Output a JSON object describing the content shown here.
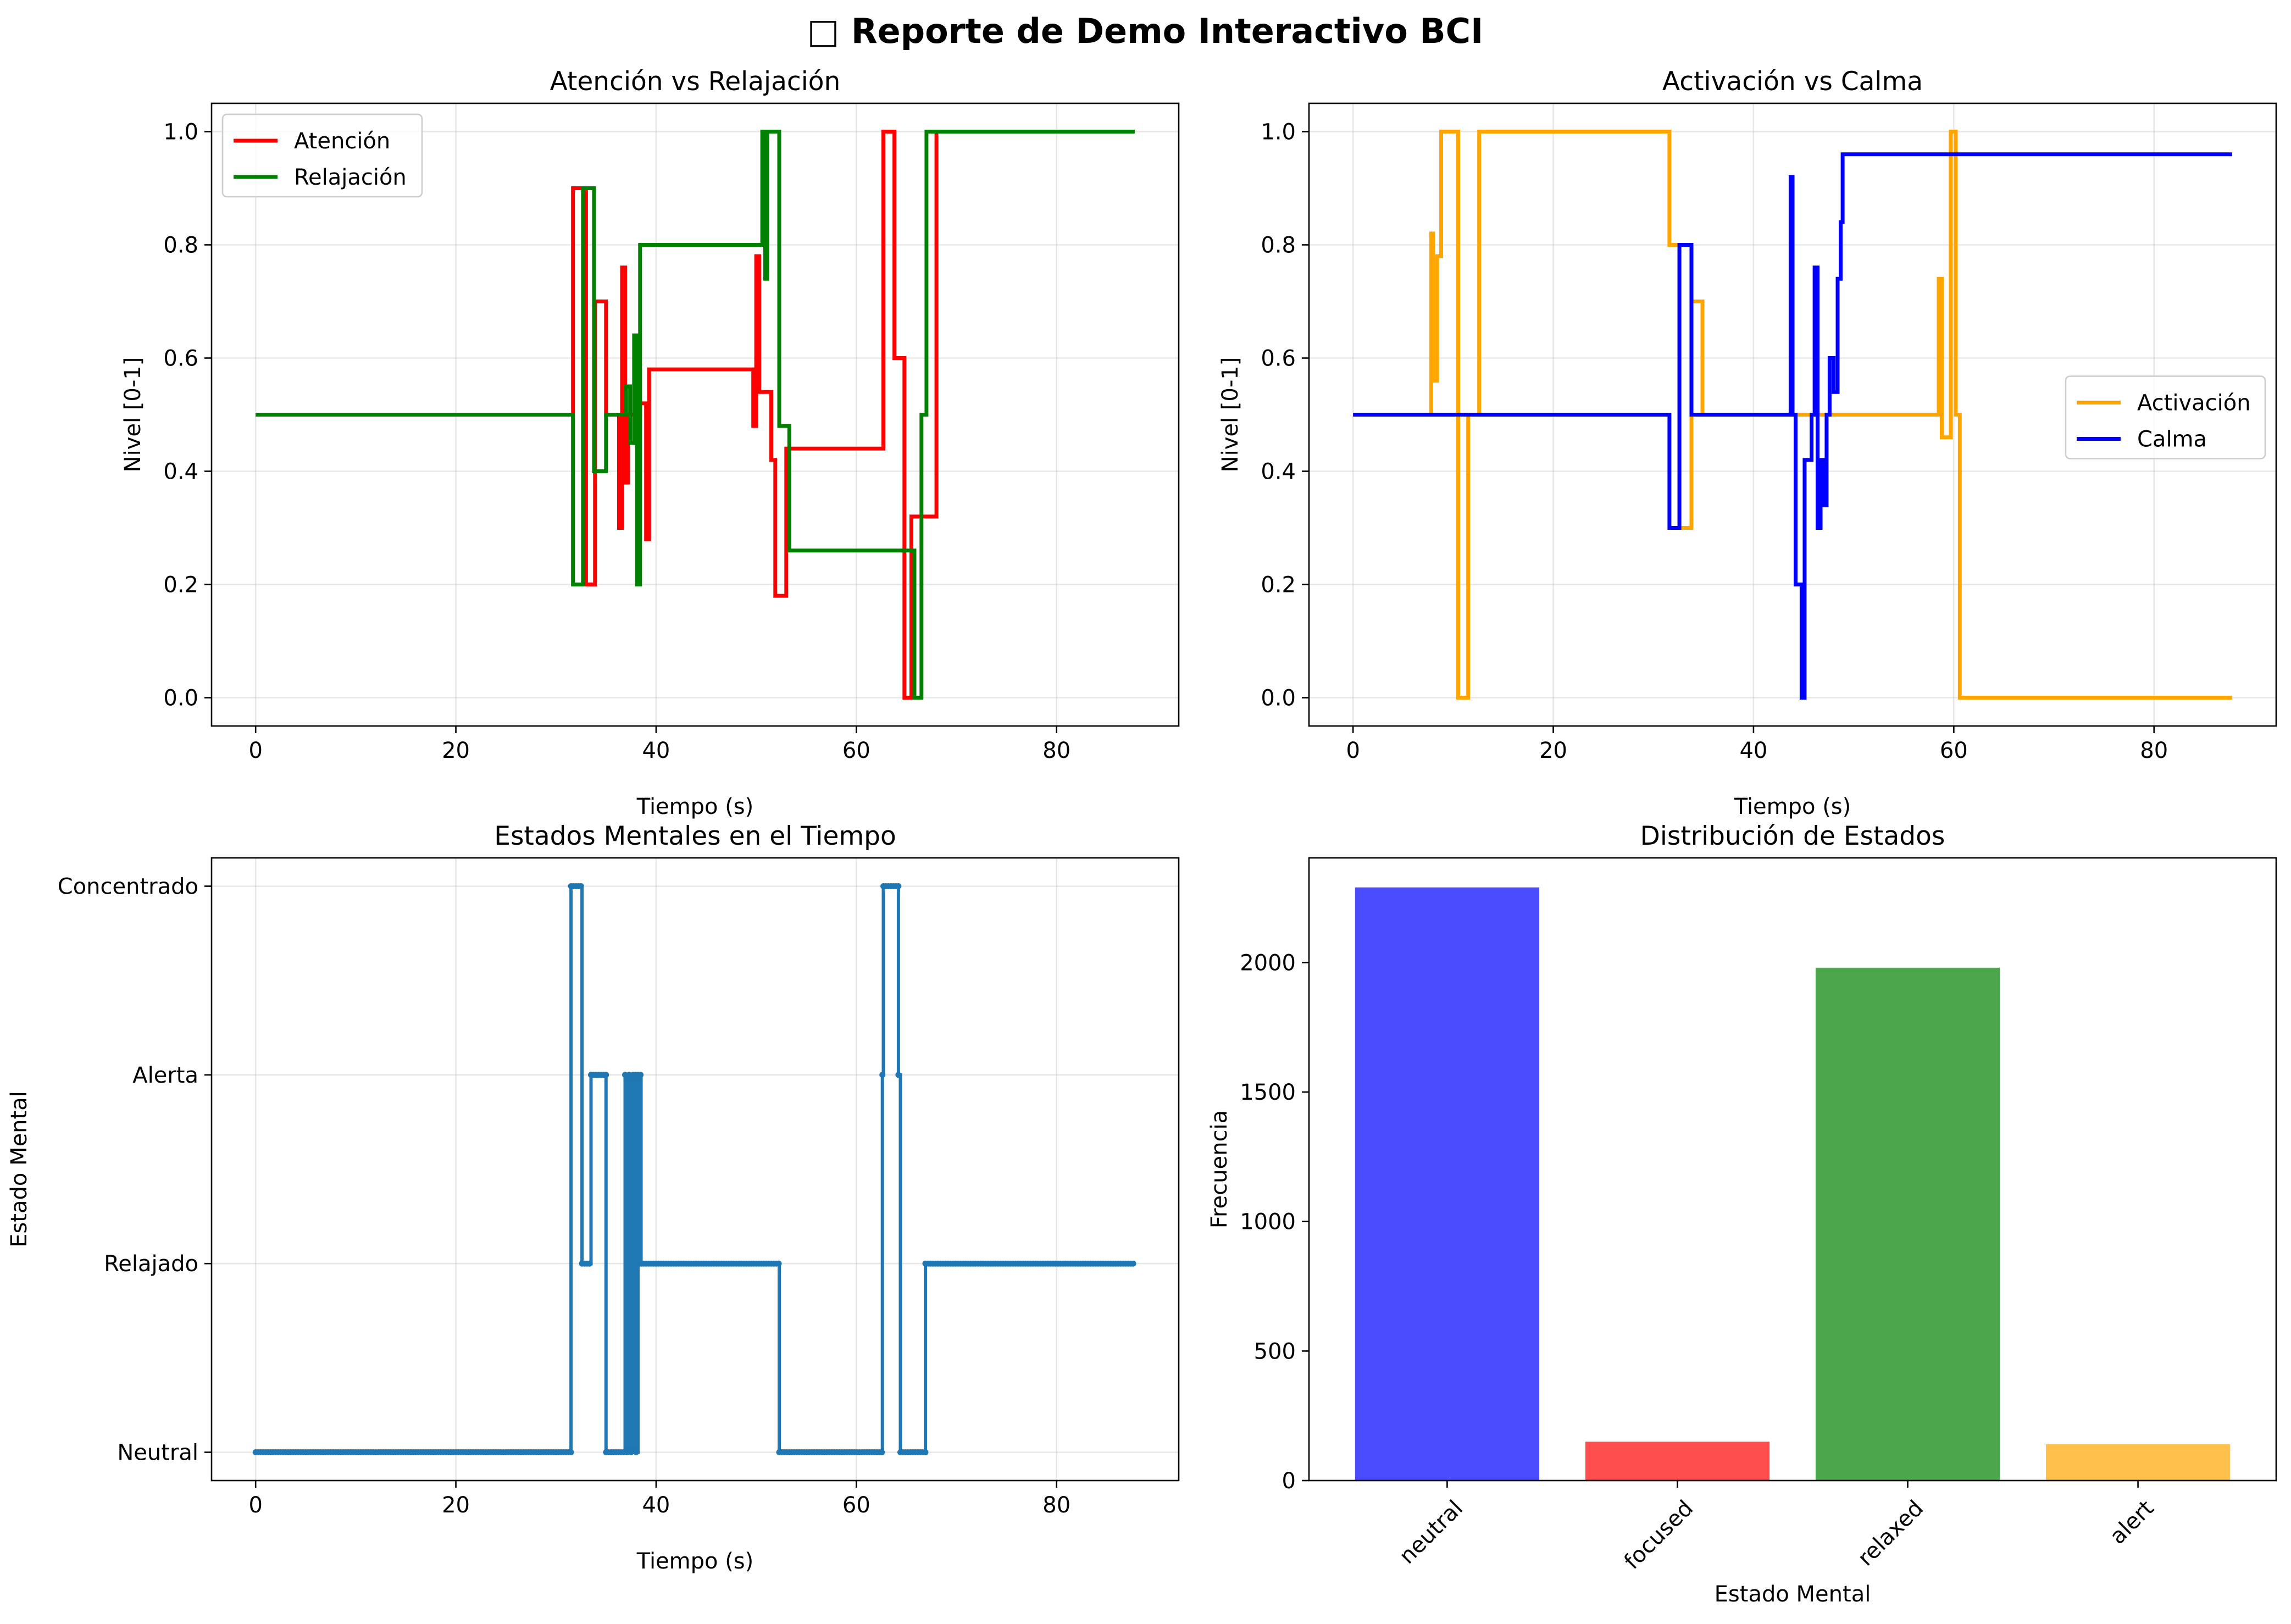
{
  "figure": {
    "suptitle": "□ Reporte de Demo Interactivo BCI"
  },
  "colors": {
    "atencion": "#ff0000",
    "relajacion": "#008000",
    "activacion": "#ffa500",
    "calma": "#0000ff",
    "estados": "#1f77b4"
  },
  "chart_data": [
    {
      "type": "line",
      "title": "Atención vs Relajación",
      "xlabel": "Tiempo (s)",
      "ylabel": "Nivel [0-1]",
      "xlim": [
        -4.4,
        92.2
      ],
      "ylim": [
        -0.05,
        1.05
      ],
      "xticks": [
        0,
        20,
        40,
        60,
        80
      ],
      "yticks": [
        0.0,
        0.2,
        0.4,
        0.6,
        0.8,
        1.0
      ],
      "grid": true,
      "legend": "upper left",
      "series": [
        {
          "name": "Atención",
          "color": "#ff0000",
          "points": [
            [
              0,
              0.5
            ],
            [
              31.7,
              0.5
            ],
            [
              31.7,
              0.9
            ],
            [
              33,
              0.9
            ],
            [
              33,
              0.2
            ],
            [
              33.9,
              0.2
            ],
            [
              33.9,
              0.7
            ],
            [
              35,
              0.7
            ],
            [
              35,
              0.5
            ],
            [
              36.3,
              0.5
            ],
            [
              36.3,
              0.3
            ],
            [
              36.6,
              0.3
            ],
            [
              36.6,
              0.76
            ],
            [
              36.9,
              0.76
            ],
            [
              36.9,
              0.38
            ],
            [
              37.2,
              0.38
            ],
            [
              37.2,
              0.5
            ],
            [
              38.4,
              0.5
            ],
            [
              38.4,
              0.52
            ],
            [
              39,
              0.52
            ],
            [
              39,
              0.28
            ],
            [
              39.3,
              0.28
            ],
            [
              39.3,
              0.58
            ],
            [
              49.7,
              0.58
            ],
            [
              49.7,
              0.48
            ],
            [
              50,
              0.48
            ],
            [
              50,
              0.78
            ],
            [
              50.3,
              0.78
            ],
            [
              50.3,
              0.54
            ],
            [
              51.5,
              0.54
            ],
            [
              51.5,
              0.42
            ],
            [
              51.9,
              0.42
            ],
            [
              51.9,
              0.18
            ],
            [
              53,
              0.18
            ],
            [
              53,
              0.44
            ],
            [
              62.7,
              0.44
            ],
            [
              62.7,
              1.0
            ],
            [
              63.8,
              1.0
            ],
            [
              63.8,
              0.6
            ],
            [
              64.8,
              0.6
            ],
            [
              64.8,
              0.0
            ],
            [
              65.5,
              0.0
            ],
            [
              65.5,
              0.32
            ],
            [
              68,
              0.32
            ],
            [
              68,
              1.0
            ],
            [
              87.8,
              1.0
            ]
          ]
        },
        {
          "name": "Relajación",
          "color": "#008000",
          "points": [
            [
              0,
              0.5
            ],
            [
              31.7,
              0.5
            ],
            [
              31.7,
              0.2
            ],
            [
              32.7,
              0.2
            ],
            [
              32.7,
              0.9
            ],
            [
              33.8,
              0.9
            ],
            [
              33.8,
              0.4
            ],
            [
              35,
              0.4
            ],
            [
              35,
              0.5
            ],
            [
              37,
              0.5
            ],
            [
              37,
              0.55
            ],
            [
              37.4,
              0.55
            ],
            [
              37.4,
              0.45
            ],
            [
              37.8,
              0.45
            ],
            [
              37.8,
              0.64
            ],
            [
              38.1,
              0.64
            ],
            [
              38.1,
              0.2
            ],
            [
              38.4,
              0.2
            ],
            [
              38.4,
              0.8
            ],
            [
              50.6,
              0.8
            ],
            [
              50.6,
              1.0
            ],
            [
              50.9,
              1.0
            ],
            [
              50.9,
              0.74
            ],
            [
              51.1,
              0.74
            ],
            [
              51.1,
              1.0
            ],
            [
              52.3,
              1.0
            ],
            [
              52.3,
              0.48
            ],
            [
              53.3,
              0.48
            ],
            [
              53.3,
              0.26
            ],
            [
              65.8,
              0.26
            ],
            [
              65.8,
              0.0
            ],
            [
              66.5,
              0.0
            ],
            [
              66.5,
              0.5
            ],
            [
              67,
              0.5
            ],
            [
              67,
              1.0
            ],
            [
              87.8,
              1.0
            ]
          ]
        }
      ]
    },
    {
      "type": "line",
      "title": "Activación vs Calma",
      "xlabel": "Tiempo (s)",
      "ylabel": "Nivel [0-1]",
      "xlim": [
        -4.4,
        92.2
      ],
      "ylim": [
        -0.05,
        1.05
      ],
      "xticks": [
        0,
        20,
        40,
        60,
        80
      ],
      "yticks": [
        0.0,
        0.2,
        0.4,
        0.6,
        0.8,
        1.0
      ],
      "grid": true,
      "legend": "center right",
      "series": [
        {
          "name": "Activación",
          "color": "#ffa500",
          "points": [
            [
              0,
              0.5
            ],
            [
              7.8,
              0.5
            ],
            [
              7.8,
              0.82
            ],
            [
              8,
              0.82
            ],
            [
              8,
              0.56
            ],
            [
              8.4,
              0.56
            ],
            [
              8.4,
              0.78
            ],
            [
              8.8,
              0.78
            ],
            [
              8.8,
              1.0
            ],
            [
              10.5,
              1.0
            ],
            [
              10.5,
              0.0
            ],
            [
              11.5,
              0.0
            ],
            [
              11.5,
              0.5
            ],
            [
              12.6,
              0.5
            ],
            [
              12.6,
              1.0
            ],
            [
              31.6,
              1.0
            ],
            [
              31.6,
              0.8
            ],
            [
              32.6,
              0.8
            ],
            [
              32.6,
              0.3
            ],
            [
              33.8,
              0.3
            ],
            [
              33.8,
              0.7
            ],
            [
              34.9,
              0.7
            ],
            [
              34.9,
              0.5
            ],
            [
              58.5,
              0.5
            ],
            [
              58.5,
              0.74
            ],
            [
              58.8,
              0.74
            ],
            [
              58.8,
              0.46
            ],
            [
              59.7,
              0.46
            ],
            [
              59.7,
              1.0
            ],
            [
              60.2,
              1.0
            ],
            [
              60.2,
              0.5
            ],
            [
              60.6,
              0.5
            ],
            [
              60.6,
              0.0
            ],
            [
              87.8,
              0.0
            ]
          ]
        },
        {
          "name": "Calma",
          "color": "#0000ff",
          "points": [
            [
              0,
              0.5
            ],
            [
              31.6,
              0.5
            ],
            [
              31.6,
              0.3
            ],
            [
              32.6,
              0.3
            ],
            [
              32.6,
              0.8
            ],
            [
              33.8,
              0.8
            ],
            [
              33.8,
              0.5
            ],
            [
              43.7,
              0.5
            ],
            [
              43.7,
              0.92
            ],
            [
              43.9,
              0.92
            ],
            [
              43.9,
              0.5
            ],
            [
              44.2,
              0.5
            ],
            [
              44.2,
              0.2
            ],
            [
              44.8,
              0.2
            ],
            [
              44.8,
              0.0
            ],
            [
              45.1,
              0.0
            ],
            [
              45.1,
              0.42
            ],
            [
              45.8,
              0.42
            ],
            [
              45.8,
              0.5
            ],
            [
              46.1,
              0.5
            ],
            [
              46.1,
              0.76
            ],
            [
              46.4,
              0.76
            ],
            [
              46.4,
              0.3
            ],
            [
              46.7,
              0.3
            ],
            [
              46.7,
              0.42
            ],
            [
              47,
              0.42
            ],
            [
              47,
              0.34
            ],
            [
              47.3,
              0.34
            ],
            [
              47.3,
              0.5
            ],
            [
              47.6,
              0.5
            ],
            [
              47.6,
              0.6
            ],
            [
              48,
              0.6
            ],
            [
              48,
              0.54
            ],
            [
              48.4,
              0.54
            ],
            [
              48.4,
              0.74
            ],
            [
              48.7,
              0.74
            ],
            [
              48.7,
              0.84
            ],
            [
              48.9,
              0.84
            ],
            [
              48.9,
              0.96
            ],
            [
              87.8,
              0.96
            ]
          ]
        }
      ]
    },
    {
      "type": "line",
      "title": "Estados Mentales en el Tiempo",
      "xlabel": "Tiempo (s)",
      "ylabel": "Estado Mental",
      "xlim": [
        -4.4,
        92.2
      ],
      "ylim": [
        -0.15,
        3.15
      ],
      "xticks": [
        0,
        20,
        40,
        60,
        80
      ],
      "categories": [
        "Neutral",
        "Relajado",
        "Alerta",
        "Concentrado"
      ],
      "grid": true,
      "series": [
        {
          "name": "",
          "color": "#1f77b4",
          "points": [
            [
              0,
              0
            ],
            [
              31.5,
              0
            ],
            [
              31.5,
              3
            ],
            [
              32.6,
              3
            ],
            [
              32.6,
              1
            ],
            [
              33.5,
              1
            ],
            [
              33.5,
              2
            ],
            [
              35,
              2
            ],
            [
              35,
              0
            ],
            [
              36.9,
              0
            ],
            [
              36.9,
              2
            ],
            [
              37.1,
              2
            ],
            [
              37.1,
              0
            ],
            [
              37.3,
              0
            ],
            [
              37.3,
              2
            ],
            [
              37.5,
              2
            ],
            [
              37.5,
              0
            ],
            [
              37.7,
              0
            ],
            [
              37.7,
              2
            ],
            [
              38,
              2
            ],
            [
              38,
              0
            ],
            [
              38.2,
              0
            ],
            [
              38.2,
              2
            ],
            [
              38.5,
              2
            ],
            [
              38.5,
              1
            ],
            [
              52.3,
              1
            ],
            [
              52.3,
              0
            ],
            [
              62.6,
              0
            ],
            [
              62.6,
              2
            ],
            [
              62.7,
              2
            ],
            [
              62.7,
              3
            ],
            [
              64.2,
              3
            ],
            [
              64.2,
              2
            ],
            [
              64.4,
              2
            ],
            [
              64.4,
              0
            ],
            [
              66.9,
              0
            ],
            [
              66.9,
              1
            ],
            [
              87.8,
              1
            ]
          ]
        }
      ]
    },
    {
      "type": "bar",
      "title": "Distribución de Estados",
      "xlabel": "Estado Mental",
      "ylabel": "Frecuencia",
      "categories": [
        "neutral",
        "focused",
        "relaxed",
        "alert"
      ],
      "values": [
        2290,
        150,
        1980,
        140
      ],
      "colors": [
        "#4c4cff",
        "#ff4c4c",
        "#4ca64c",
        "#ffc04c"
      ],
      "ylim": [
        0,
        2404
      ],
      "yticks": [
        0,
        500,
        1000,
        1500,
        2000
      ],
      "grid": false
    }
  ]
}
